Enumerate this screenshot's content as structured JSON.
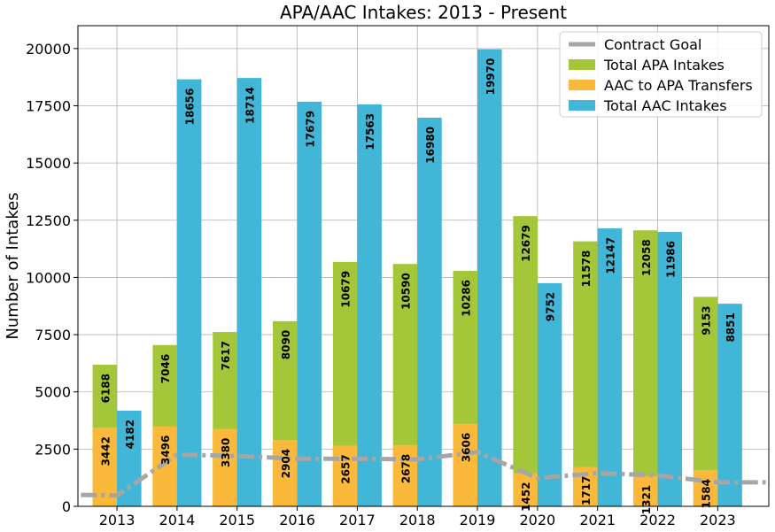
{
  "chart_data": {
    "type": "bar",
    "title": "APA/AAC Intakes: 2013 - Present",
    "xlabel": "",
    "ylabel": "Number of Intakes",
    "ylim": [
      0,
      21000
    ],
    "yticks": [
      0,
      2500,
      5000,
      7500,
      10000,
      12500,
      15000,
      17500,
      20000
    ],
    "grid": true,
    "legend_position": "top-right",
    "categories": [
      "2013",
      "2014",
      "2015",
      "2016",
      "2017",
      "2018",
      "2019",
      "2020",
      "2021",
      "2022",
      "2023"
    ],
    "series": [
      {
        "name": "Contract Goal",
        "kind": "line",
        "style": "dashdot",
        "color": "#a6a6a6",
        "x_extended": [
          2012.4,
          2013,
          2014,
          2015,
          2016,
          2017,
          2018,
          2019,
          2020,
          2021,
          2022,
          2023,
          2023.8
        ],
        "values_extended": [
          500,
          480,
          2260,
          2200,
          2080,
          2080,
          2050,
          2370,
          1230,
          1450,
          1350,
          1050,
          1050
        ]
      },
      {
        "name": "Total APA Intakes",
        "kind": "bar",
        "position": "left",
        "color": "#a4c639",
        "values": [
          6188,
          7046,
          7617,
          8090,
          10679,
          10590,
          10286,
          12679,
          11578,
          12058,
          9153
        ]
      },
      {
        "name": "AAC to APA Transfers",
        "kind": "bar",
        "position": "left",
        "color": "#fbb93b",
        "values": [
          3442,
          3496,
          3380,
          2904,
          2657,
          2678,
          3606,
          1452,
          1717,
          1321,
          1584
        ]
      },
      {
        "name": "Total AAC Intakes",
        "kind": "bar",
        "position": "right",
        "color": "#41b6d6",
        "values": [
          4182,
          18656,
          18714,
          17679,
          17563,
          16980,
          19970,
          9752,
          12147,
          11986,
          8851
        ]
      }
    ],
    "legend_order": [
      "Contract Goal",
      "Total APA Intakes",
      "AAC to APA Transfers",
      "Total AAC Intakes"
    ]
  }
}
